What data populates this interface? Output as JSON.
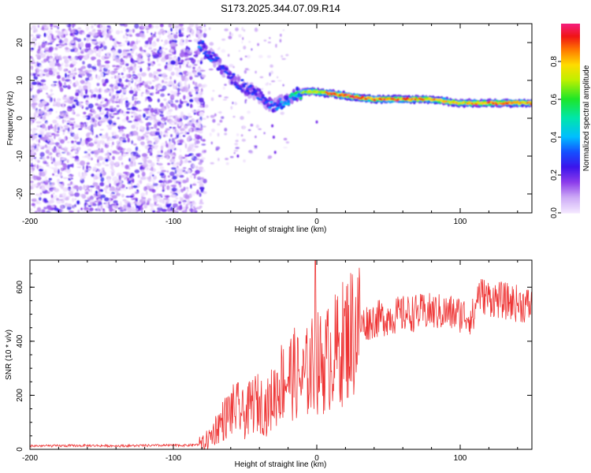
{
  "title": "S173.2025.344.07.09.R14",
  "chart_data": [
    {
      "type": "heatmap",
      "xlabel": "Height of straight line (km)",
      "ylabel": "Frequency (Hz)",
      "xlim": [
        -200,
        150
      ],
      "ylim": [
        -25,
        25
      ],
      "xticks": [
        -200,
        -100,
        0,
        100
      ],
      "yticks": [
        -20,
        -10,
        0,
        10,
        20
      ],
      "colorbar": {
        "label": "Normalized spectral amplitude",
        "range": [
          0.0,
          1.0
        ],
        "ticks": [
          0.0,
          0.2,
          0.4,
          0.6,
          0.8
        ],
        "tick_labels": [
          "0.0",
          "0.2",
          "0.4",
          "0.6",
          "0.8"
        ]
      },
      "ridge": {
        "heights_km": [
          -80,
          -70,
          -60,
          -50,
          -40,
          -30,
          -20,
          -10,
          0,
          20,
          40,
          60,
          80,
          100,
          120,
          150
        ],
        "frequency_hz": [
          19,
          15,
          11,
          8,
          6,
          3,
          5,
          7,
          7,
          6,
          5,
          5,
          5,
          4,
          4,
          4
        ],
        "amplitude": [
          0.35,
          0.3,
          0.3,
          0.3,
          0.3,
          0.35,
          0.45,
          0.6,
          0.75,
          0.9,
          0.85,
          0.85,
          0.8,
          0.75,
          0.8,
          0.8
        ]
      }
    },
    {
      "type": "line",
      "xlabel": "Height of straight line (km)",
      "ylabel": "SNR (10 * v/v)",
      "xlim": [
        -200,
        150
      ],
      "ylim": [
        0,
        700
      ],
      "xticks": [
        -200,
        -100,
        0,
        100
      ],
      "yticks": [
        0,
        200,
        400,
        600
      ],
      "series": [
        {
          "name": "SNR",
          "color": "#ee3333",
          "x": [
            -200,
            -180,
            -160,
            -140,
            -120,
            -100,
            -90,
            -80,
            -75,
            -70,
            -65,
            -60,
            -55,
            -50,
            -45,
            -40,
            -35,
            -30,
            -25,
            -20,
            -15,
            -10,
            -5,
            0,
            5,
            10,
            15,
            20,
            25,
            30,
            35,
            40,
            50,
            60,
            70,
            80,
            90,
            100,
            110,
            112,
            115,
            120,
            130,
            140,
            150
          ],
          "y": [
            12,
            12,
            13,
            12,
            13,
            14,
            14,
            18,
            40,
            80,
            110,
            140,
            150,
            120,
            170,
            170,
            150,
            200,
            250,
            270,
            280,
            250,
            300,
            320,
            320,
            350,
            370,
            410,
            440,
            460,
            470,
            480,
            490,
            500,
            505,
            510,
            505,
            500,
            490,
            580,
            570,
            560,
            550,
            540,
            530
          ]
        }
      ],
      "spike": {
        "x": -1,
        "y": 700
      }
    }
  ]
}
